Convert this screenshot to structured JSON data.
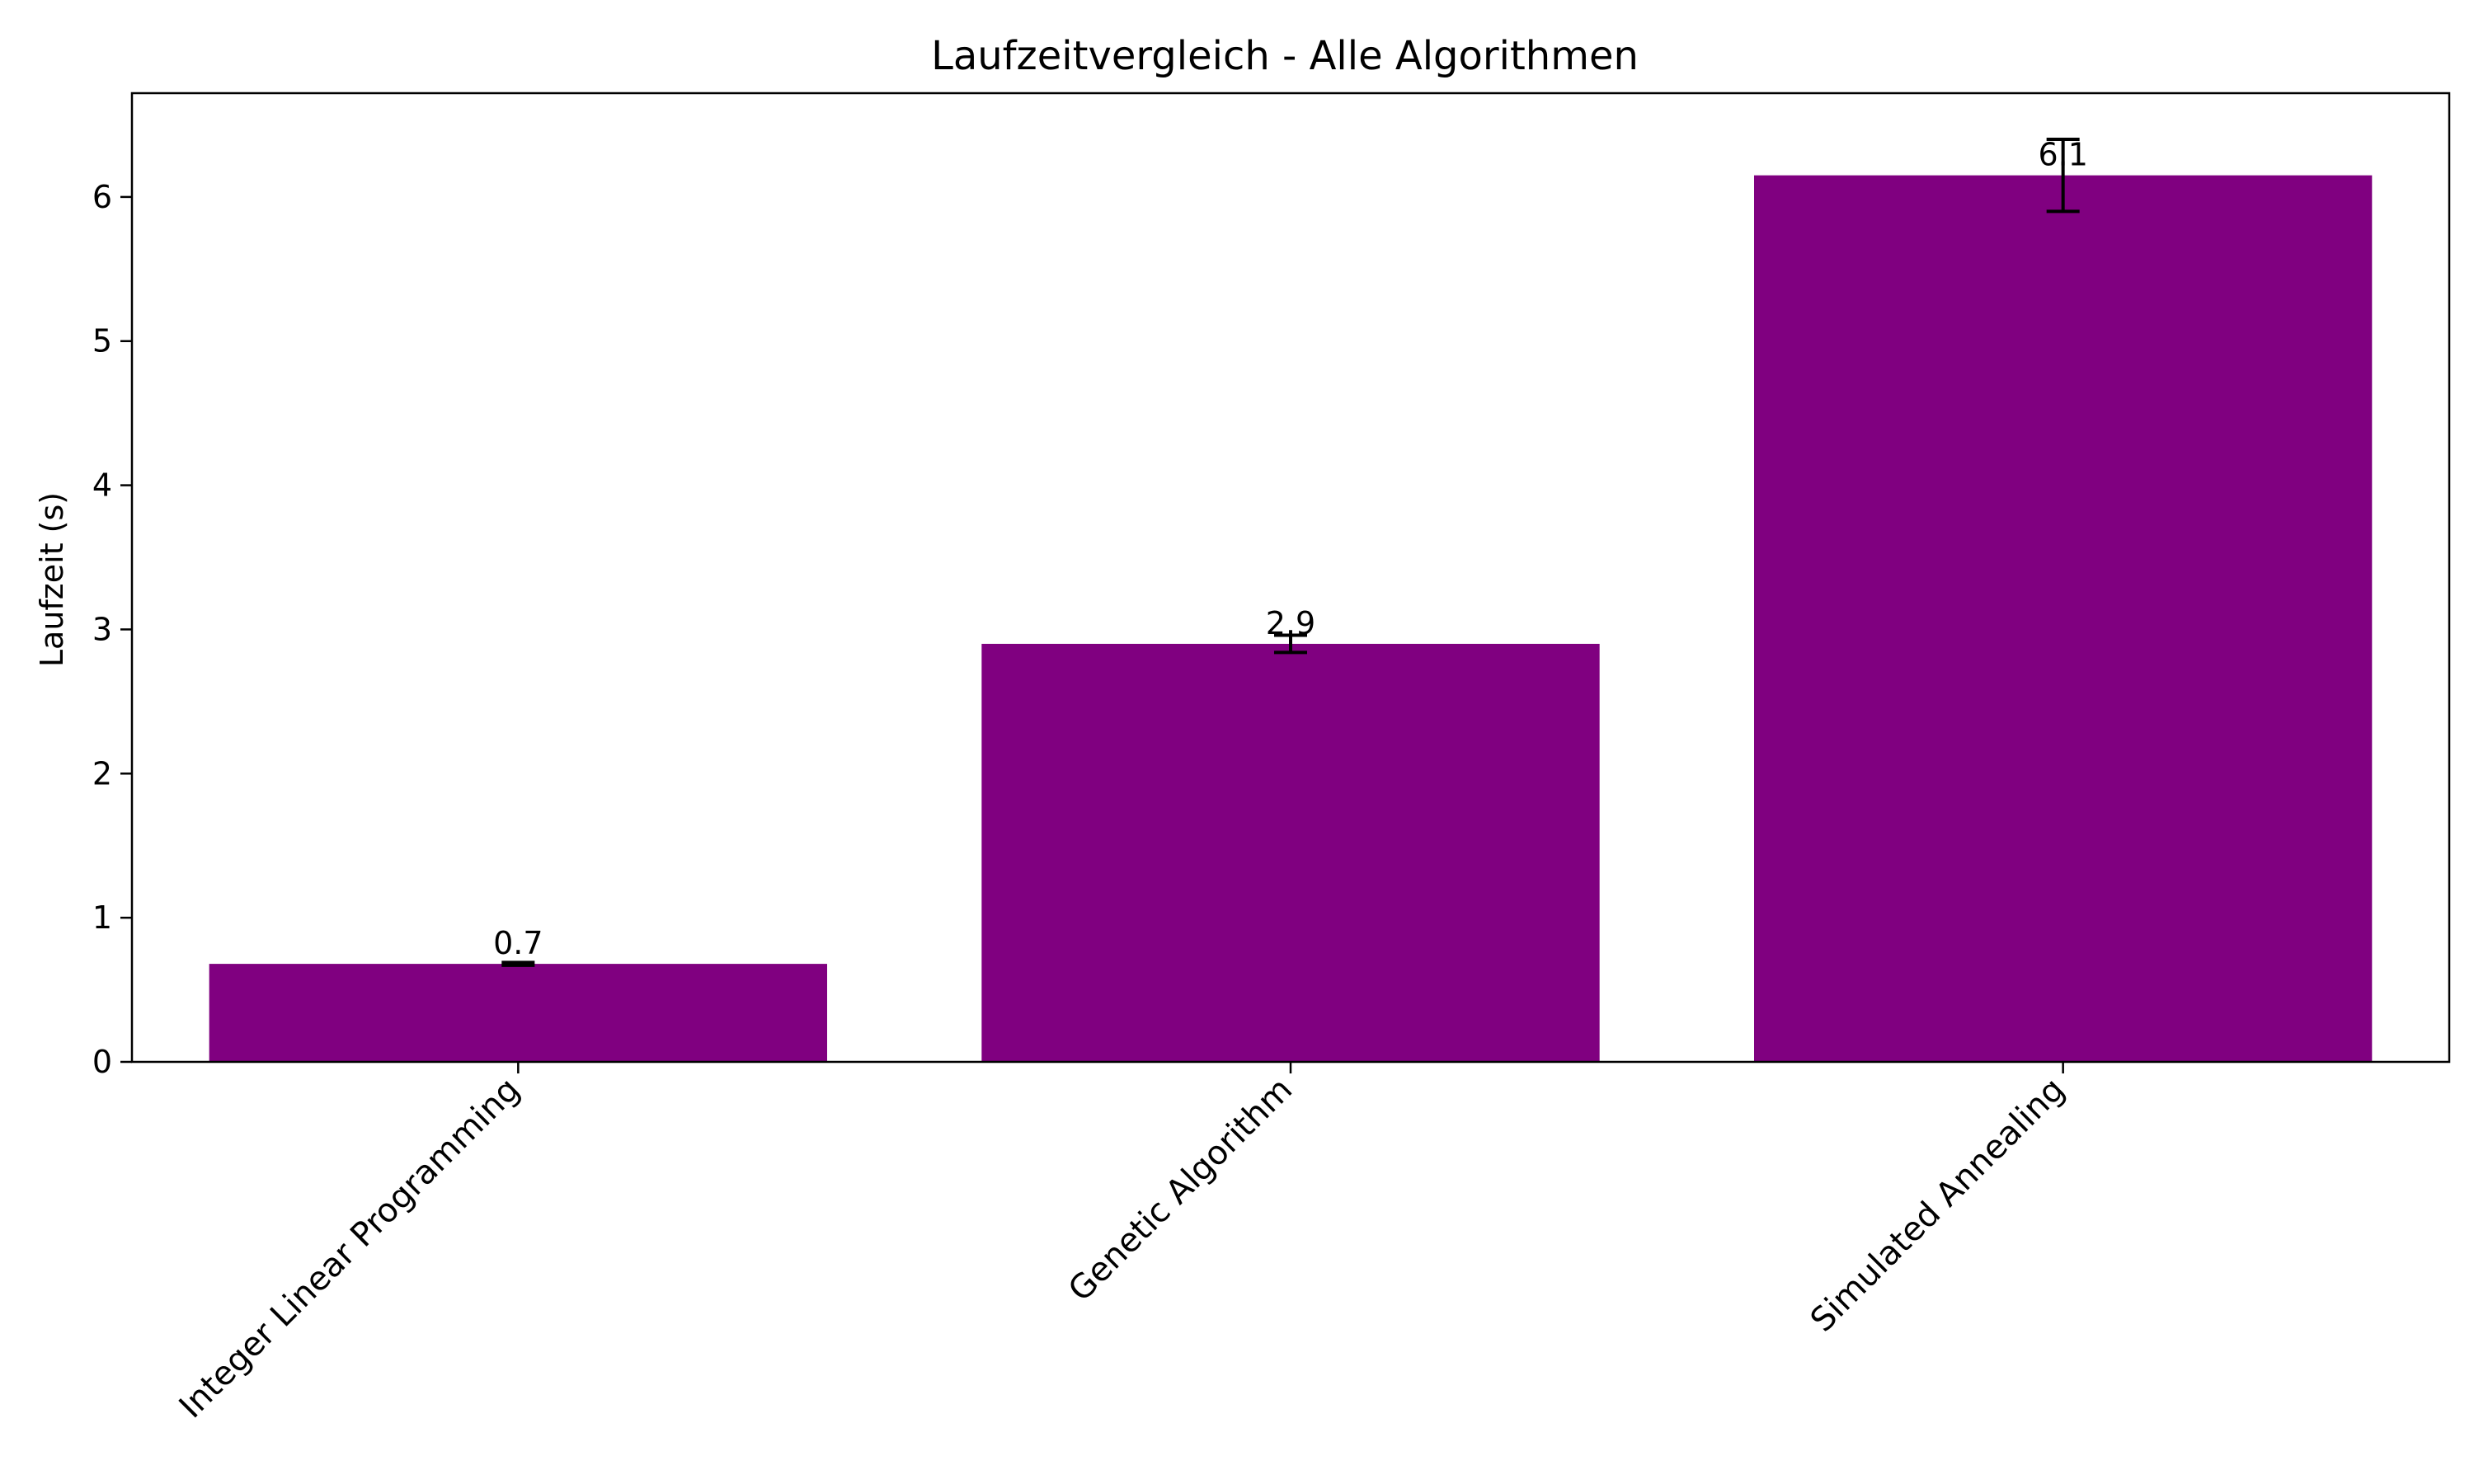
{
  "chart_data": {
    "type": "bar",
    "title": "Laufzeitvergleich - Alle Algorithmen",
    "xlabel": "",
    "ylabel": "Laufzeit (s)",
    "categories": [
      "Integer Linear Programming",
      "Genetic Algorithm",
      "Simulated Annealing"
    ],
    "values": [
      0.68,
      2.9,
      6.15
    ],
    "errors": [
      0.01,
      0.06,
      0.25
    ],
    "data_labels": [
      "0.7",
      "2.9",
      "6.1"
    ],
    "ylim": [
      0,
      6.72
    ],
    "yticks": [
      0,
      1,
      2,
      3,
      4,
      5,
      6
    ],
    "ytick_labels": [
      "0",
      "1",
      "2",
      "3",
      "4",
      "5",
      "6"
    ],
    "grid": false,
    "bar_color": "#800080",
    "error_color": "#000000"
  }
}
